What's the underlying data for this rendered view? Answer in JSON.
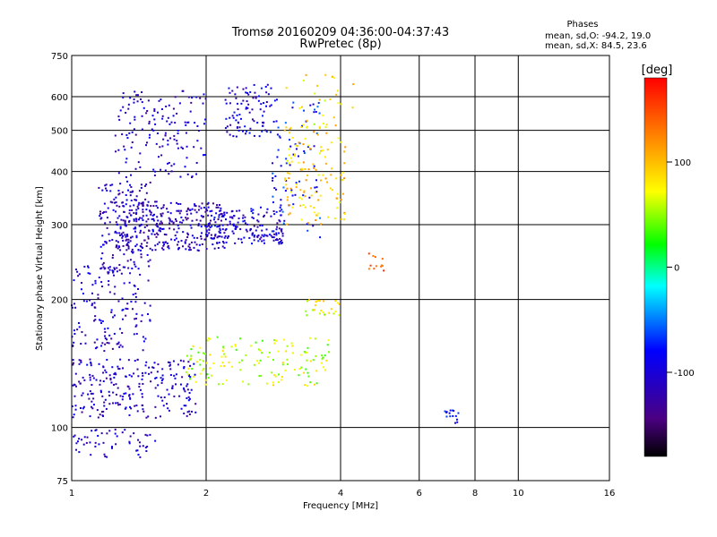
{
  "chart_data": {
    "type": "scatter",
    "title": "Tromsø 20160209 04:36:00-04:37:43",
    "subtitle": "RwPretec (8p)",
    "xlabel": "Frequency [MHz]",
    "ylabel": "Stationary phase Virtual Height [km]",
    "x_scale": "log",
    "y_scale": "log",
    "xlim": [
      1,
      16
    ],
    "ylim": [
      75,
      750
    ],
    "x_ticks": [
      1,
      2,
      4,
      6,
      8,
      10,
      16
    ],
    "y_ticks": [
      75,
      100,
      200,
      300,
      400,
      500,
      600,
      750
    ],
    "grid": true,
    "stats": {
      "heading": "Phases",
      "line1": "mean, sd,O: -94.2, 19.0",
      "line2": "mean, sd,X:  84.5, 23.6"
    },
    "colorbar": {
      "label": "[deg]",
      "range": [
        -180,
        180
      ],
      "ticks": [
        100,
        0,
        -100
      ],
      "placement": "right"
    },
    "series": [
      {
        "mode": "O",
        "clusters": [
          {
            "x": [
              1.0,
              1.55
            ],
            "y": [
              85,
              100
            ],
            "phase": -105,
            "count": 55
          },
          {
            "x": [
              1.0,
              1.9
            ],
            "y": [
              105,
              145
            ],
            "phase": -108,
            "count": 240
          },
          {
            "x": [
              1.0,
              1.5
            ],
            "y": [
              150,
              240
            ],
            "phase": -105,
            "count": 140
          },
          {
            "x": [
              1.15,
              1.5
            ],
            "y": [
              230,
              380
            ],
            "phase": -110,
            "count": 170
          },
          {
            "x": [
              1.25,
              2.2
            ],
            "y": [
              260,
              340
            ],
            "phase": -112,
            "count": 300
          },
          {
            "x": [
              2.0,
              3.0
            ],
            "y": [
              270,
              330
            ],
            "phase": -100,
            "count": 170
          },
          {
            "x": [
              1.25,
              2.0
            ],
            "y": [
              380,
              620
            ],
            "phase": -108,
            "count": 150
          },
          {
            "x": [
              2.2,
              2.8
            ],
            "y": [
              480,
              640
            ],
            "phase": -100,
            "count": 90
          },
          {
            "x": [
              2.8,
              3.6
            ],
            "y": [
              280,
              600
            ],
            "phase": -80,
            "count": 80
          },
          {
            "x": [
              6.8,
              7.4
            ],
            "y": [
              102,
              110
            ],
            "phase": -90,
            "count": 15
          }
        ]
      },
      {
        "mode": "X",
        "clusters": [
          {
            "x": [
              1.8,
              3.8
            ],
            "y": [
              125,
              165
            ],
            "phase": 60,
            "count": 140
          },
          {
            "x": [
              3.0,
              4.1
            ],
            "y": [
              300,
              520
            ],
            "phase": 95,
            "count": 130
          },
          {
            "x": [
              3.3,
              4.0
            ],
            "y": [
              180,
              200
            ],
            "phase": 70,
            "count": 25
          },
          {
            "x": [
              3.0,
              4.4
            ],
            "y": [
              500,
              680
            ],
            "phase": 80,
            "count": 25
          },
          {
            "x": [
              4.6,
              5.0
            ],
            "y": [
              230,
              260
            ],
            "phase": 140,
            "count": 12
          }
        ]
      }
    ]
  }
}
